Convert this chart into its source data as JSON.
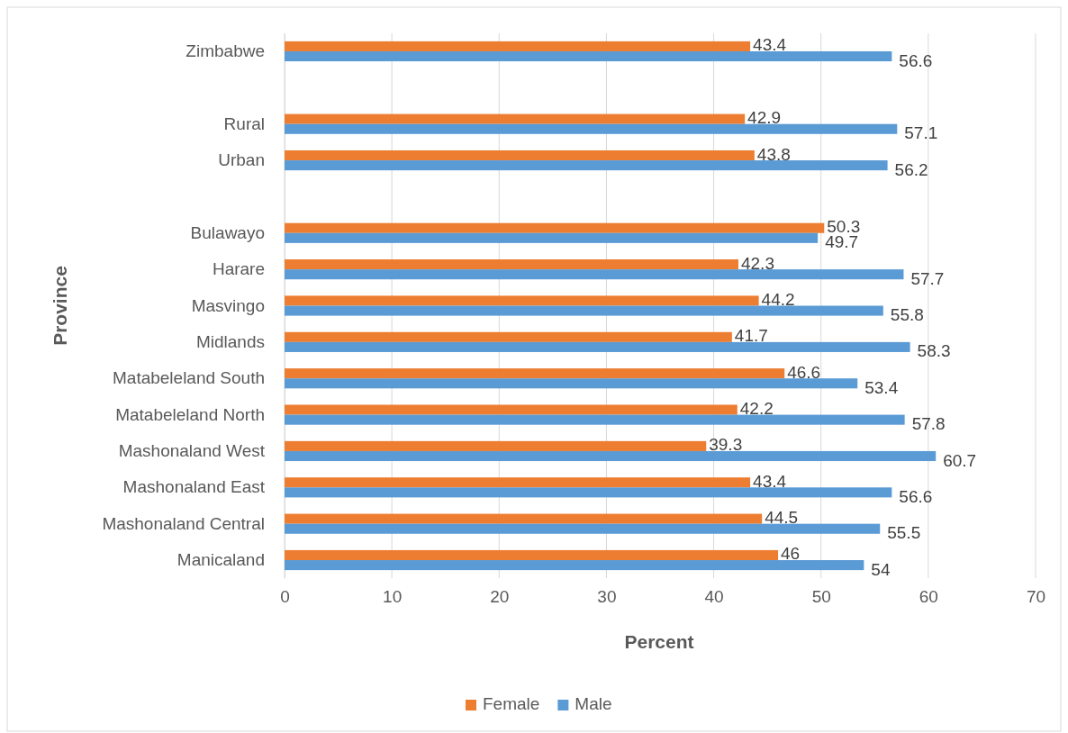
{
  "chart_data": {
    "type": "bar",
    "orientation": "horizontal",
    "xlabel": "Percent",
    "ylabel": "Province",
    "categories": [
      "Zimbabwe",
      null,
      "Rural",
      "Urban",
      null,
      "Bulawayo",
      "Harare",
      "Masvingo",
      "Midlands",
      "Matabeleland South",
      "Matabeleland North",
      "Mashonaland West",
      "Mashonaland East",
      "Mashonaland Central",
      "Manicaland"
    ],
    "series": [
      {
        "name": "Female",
        "color": "#ed7d31",
        "values": [
          43.4,
          null,
          42.9,
          43.8,
          null,
          50.3,
          42.3,
          44.2,
          41.7,
          46.6,
          42.2,
          39.3,
          43.4,
          44.5,
          46
        ]
      },
      {
        "name": "Male",
        "color": "#5b9bd5",
        "values": [
          56.6,
          null,
          57.1,
          56.2,
          null,
          49.7,
          57.7,
          55.8,
          58.3,
          53.4,
          57.8,
          60.7,
          56.6,
          55.5,
          54
        ]
      }
    ],
    "xlim": [
      0,
      70
    ],
    "xticks": [
      0,
      10,
      20,
      30,
      40,
      50,
      60,
      70
    ],
    "grid": "x",
    "legend": "bottom",
    "data_labels": true
  }
}
